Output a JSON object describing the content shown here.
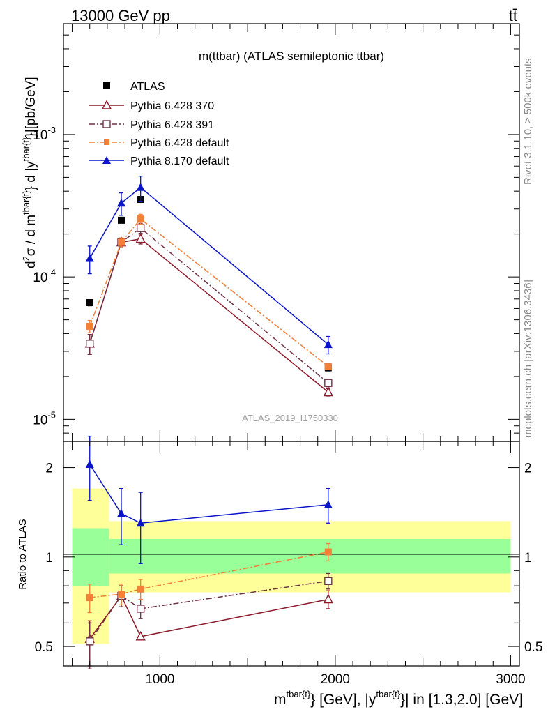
{
  "header": {
    "left": "13000 GeV pp",
    "right": "tt̄"
  },
  "side_labels": {
    "top": "Rivet 3.1.10, ≥ 500k events",
    "bottom": "mcplots.cern.ch [arXiv:1306.3436]"
  },
  "chart_data": [
    {
      "type": "scatter",
      "title": "m(ttbar) (ATLAS semileptonic ttbar)",
      "watermark": "ATLAS_2019_I1750330",
      "ylabel": {
        "prefix": "d",
        "sup1": "2",
        "mid1": "σ /  d m",
        "sup2": "tbar{t}",
        "mid2": "} d |y",
        "sup3": "tbar{t}",
        "suffix": "}|[pb/GeV]"
      },
      "yscale": "log",
      "ylim": [
        7e-06,
        0.006
      ],
      "ytick_labels": [
        {
          "value": 1e-05,
          "base": "10",
          "exp": "-5"
        },
        {
          "value": 0.0001,
          "base": "10",
          "exp": "-4"
        },
        {
          "value": 0.001,
          "base": "10",
          "exp": "-3"
        }
      ],
      "legend_position": "top-left",
      "series": [
        {
          "name": "ATLAS",
          "marker": "square-filled",
          "color": "#000000",
          "line": "none",
          "x": [
            600,
            780,
            890,
            1960
          ],
          "y": [
            6.6e-05,
            0.00025,
            0.00035,
            2.3e-05
          ],
          "err": [
            0.05,
            0.04,
            0.04,
            0.05
          ]
        },
        {
          "name": "Pythia 6.428 370",
          "marker": "triangle-open",
          "color": "#8b1a2a",
          "line": "solid",
          "x": [
            600,
            780,
            890,
            1960
          ],
          "y": [
            3.4e-05,
            0.000175,
            0.000185,
            1.55e-05
          ],
          "err": [
            0.16,
            0.07,
            0.08,
            0.06
          ]
        },
        {
          "name": "Pythia 6.428 391",
          "marker": "square-open",
          "color": "#6e3045",
          "line": "dashdot",
          "x": [
            600,
            780,
            890,
            1960
          ],
          "y": [
            3.4e-05,
            0.000175,
            0.00022,
            1.8e-05
          ],
          "err": [
            0.16,
            0.07,
            0.08,
            0.06
          ]
        },
        {
          "name": "Pythia 6.428 default",
          "marker": "square-filled",
          "color": "#f47f36",
          "line": "dashdot",
          "x": [
            600,
            780,
            890,
            1960
          ],
          "y": [
            4.5e-05,
            0.000175,
            0.000255,
            2.35e-05
          ],
          "err": [
            0.1,
            0.07,
            0.08,
            0.05
          ]
        },
        {
          "name": "Pythia 8.170 default",
          "marker": "triangle-filled",
          "color": "#0a14c8",
          "line": "solid",
          "x": [
            600,
            780,
            890,
            1960
          ],
          "y": [
            0.000135,
            0.00033,
            0.000425,
            3.35e-05
          ],
          "err": [
            0.22,
            0.18,
            0.2,
            0.14
          ]
        }
      ]
    },
    {
      "type": "scatter",
      "ylabel": "Ratio to ATLAS",
      "yscale": "log",
      "ylim": [
        0.43,
        2.45
      ],
      "ytick_labels": [
        {
          "value": 0.5,
          "label": "0.5"
        },
        {
          "value": 1,
          "label": "1"
        },
        {
          "value": 2,
          "label": "2"
        }
      ],
      "xlim": [
        450,
        3050
      ],
      "xtick_labels": [
        {
          "value": 1000,
          "label": "1000"
        },
        {
          "value": 2000,
          "label": "2000"
        },
        {
          "value": 3000,
          "label": "3000"
        }
      ],
      "xlabel": {
        "p1": "m",
        "s1": "tbar{t}",
        "p2": "} [GeV], |y",
        "s2": "tbar{t}",
        "p3": "}| in [1.3,2.0] [GeV]"
      },
      "bands": {
        "edges": [
          500,
          710,
          3000
        ],
        "stat": [
          [
            0.8,
            1.25
          ],
          [
            0.88,
            1.15
          ]
        ],
        "total": [
          [
            0.51,
            1.7
          ],
          [
            0.76,
            1.32
          ]
        ],
        "stat_color": "#99ff99",
        "total_color": "#ffff99"
      },
      "series": [
        {
          "name": "Pythia 6.428 370",
          "x": [
            600,
            780,
            890,
            1960
          ],
          "y": [
            0.53,
            0.74,
            0.54,
            0.72
          ],
          "err_lo": [
            0.1,
            0.06,
            0.0,
            0.05
          ],
          "err_hi": [
            0.08,
            0.06,
            0.0,
            0.05
          ]
        },
        {
          "name": "Pythia 6.428 391",
          "x": [
            600,
            780,
            890,
            1960
          ],
          "y": [
            0.52,
            0.74,
            0.67,
            0.83
          ],
          "err_lo": [
            0.1,
            0.06,
            0.05,
            0.05
          ],
          "err_hi": [
            0.08,
            0.06,
            0.05,
            0.05
          ]
        },
        {
          "name": "Pythia 6.428 default",
          "x": [
            600,
            780,
            890,
            1960
          ],
          "y": [
            0.73,
            0.75,
            0.78,
            1.04
          ],
          "err_lo": [
            0.08,
            0.06,
            0.06,
            0.07
          ],
          "err_hi": [
            0.08,
            0.06,
            0.06,
            0.07
          ]
        },
        {
          "name": "Pythia 8.170 default",
          "x": [
            600,
            780,
            890,
            1960
          ],
          "y": [
            2.05,
            1.4,
            1.3,
            1.5
          ],
          "err_lo": [
            0.5,
            0.3,
            0.35,
            0.2
          ],
          "err_hi": [
            0.5,
            0.3,
            0.35,
            0.2
          ]
        }
      ]
    }
  ]
}
